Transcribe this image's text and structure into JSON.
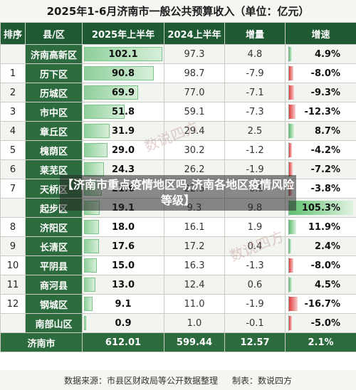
{
  "title": "2025年1-6月济南市一般公共预算收入（单位：亿元）",
  "headers": [
    "排序",
    "县/区",
    "2025年上半年",
    "2024上半年",
    "增量",
    "增速"
  ],
  "rows": [
    {
      "rank": "",
      "district": "济南高新区",
      "h1_2025": "102.1",
      "h1_2024": "97.3",
      "delta": "4.8",
      "growth": "4.9%",
      "growth_value": 4.9
    },
    {
      "rank": "1",
      "district": "历下区",
      "h1_2025": "90.8",
      "h1_2024": "98.7",
      "delta": "-7.9",
      "growth": "-8.0%",
      "growth_value": -8.0
    },
    {
      "rank": "2",
      "district": "历城区",
      "h1_2025": "69.9",
      "h1_2024": "77.0",
      "delta": "-7.1",
      "growth": "-9.3%",
      "growth_value": -9.3
    },
    {
      "rank": "3",
      "district": "市中区",
      "h1_2025": "51.8",
      "h1_2024": "59.1",
      "delta": "-7.3",
      "growth": "-12.3%",
      "growth_value": -12.3
    },
    {
      "rank": "4",
      "district": "章丘区",
      "h1_2025": "31.9",
      "h1_2024": "29.4",
      "delta": "2.5",
      "growth": "8.7%",
      "growth_value": 8.7
    },
    {
      "rank": "5",
      "district": "槐荫区",
      "h1_2025": "29.0",
      "h1_2024": "30.2",
      "delta": "-1.2",
      "growth": "-4.2%",
      "growth_value": -4.2
    },
    {
      "rank": "6",
      "district": "莱芜区",
      "h1_2025": "24.3",
      "h1_2024": "26.2",
      "delta": "-1.9",
      "growth": "-7.2%",
      "growth_value": -7.2
    },
    {
      "rank": "7",
      "district": "天桥区",
      "h1_2025": "21.6",
      "h1_2024": "22.5",
      "delta": "-0.9",
      "growth": "-3.8%",
      "growth_value": -3.8
    },
    {
      "rank": "",
      "district": "起步区",
      "h1_2025": "19.1",
      "h1_2024": "9.3",
      "delta": "9.8",
      "growth": "105.3%",
      "growth_value": 105.3
    },
    {
      "rank": "8",
      "district": "济阳区",
      "h1_2025": "18.0",
      "h1_2024": "16.1",
      "delta": "1.9",
      "growth": "11.9%",
      "growth_value": 11.9
    },
    {
      "rank": "9",
      "district": "长清区",
      "h1_2025": "17.6",
      "h1_2024": "17.2",
      "delta": "0.4",
      "growth": "2.4%",
      "growth_value": 2.4
    },
    {
      "rank": "10",
      "district": "平阴县",
      "h1_2025": "15.0",
      "h1_2024": "16.3",
      "delta": "-1.3",
      "growth": "-8.0%",
      "growth_value": -8.0
    },
    {
      "rank": "11",
      "district": "商河县",
      "h1_2025": "13.0",
      "h1_2024": "12.4",
      "delta": "0.6",
      "growth": "4.5%",
      "growth_value": 4.5
    },
    {
      "rank": "12",
      "district": "钢城区",
      "h1_2025": "9.1",
      "h1_2024": "11.0",
      "delta": "-1.9",
      "growth": "-16.7%",
      "growth_value": -16.7
    },
    {
      "rank": "",
      "district": "南部山区",
      "h1_2025": "0.9",
      "h1_2024": "1.0",
      "delta": "-0.1",
      "growth": "-5.0%",
      "growth_value": -5.0
    }
  ],
  "total": {
    "label": "济南市",
    "h1_2025": "612.01",
    "h1_2024": "599.44",
    "delta": "12.57",
    "growth": "2.1%"
  },
  "source": "数据来源：市县区财政局等公开数据整理",
  "author": "制表：数说四方",
  "overlay_caption": "【济南市重点疫情地区吗,济南各地区疫情风险等级】",
  "watermark": "数说四方",
  "colors": {
    "header_green": "#1f5a33",
    "district_green": "#2c6b3d",
    "positive": "#5fbf6e",
    "negative": "#e23d3d"
  }
}
